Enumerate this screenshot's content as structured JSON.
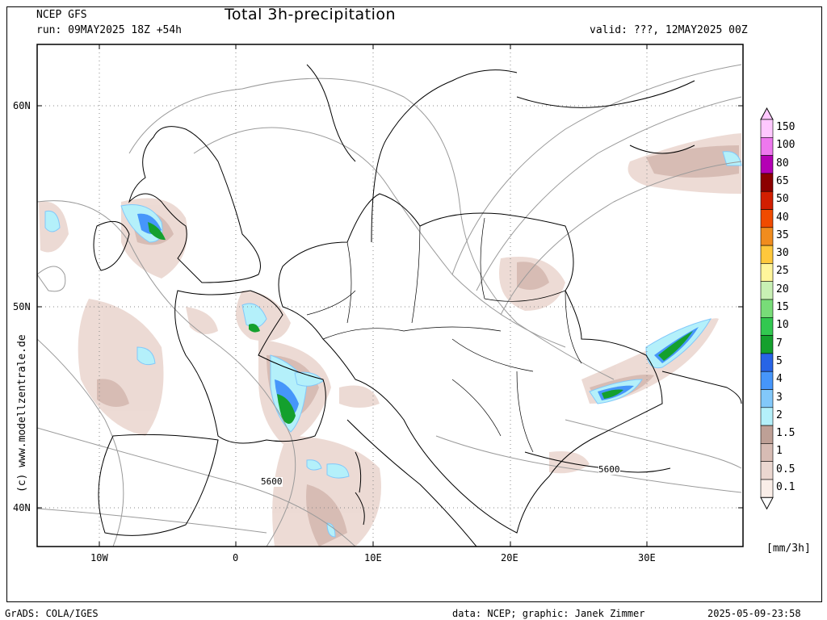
{
  "header": {
    "model": "NCEP GFS",
    "run": "run: 09MAY2025 18Z +54h",
    "title": "Total 3h-precipitation",
    "valid": "valid: ???, 12MAY2025 00Z"
  },
  "watermark": "(c) www.modellzentrale.de",
  "footer": {
    "left": "GrADS: COLA/IGES",
    "data": "data: NCEP; graphic: Janek Zimmer",
    "timestamp": "2025-05-09-23:58"
  },
  "axes": {
    "lat_labels": [
      "60N",
      "50N",
      "40N"
    ],
    "lon_labels": [
      "10W",
      "0",
      "10E",
      "20E",
      "30E"
    ]
  },
  "contour_labels": [
    "5600",
    "5600"
  ],
  "colorbar": {
    "unit": "[mm/3h]",
    "levels": [
      {
        "label": "150",
        "color": "#ffc8ff"
      },
      {
        "label": "100",
        "color": "#ee78ee"
      },
      {
        "label": "80",
        "color": "#b400b4"
      },
      {
        "label": "65",
        "color": "#8c0000"
      },
      {
        "label": "50",
        "color": "#d21e00"
      },
      {
        "label": "40",
        "color": "#f04b00"
      },
      {
        "label": "35",
        "color": "#f08c1e"
      },
      {
        "label": "30",
        "color": "#ffc83c"
      },
      {
        "label": "25",
        "color": "#fff59b"
      },
      {
        "label": "20",
        "color": "#c8f0b4"
      },
      {
        "label": "15",
        "color": "#78dc78"
      },
      {
        "label": "10",
        "color": "#32c850"
      },
      {
        "label": "7",
        "color": "#14a02d"
      },
      {
        "label": "5",
        "color": "#2864e6"
      },
      {
        "label": "4",
        "color": "#4696fa"
      },
      {
        "label": "3",
        "color": "#82c8fa"
      },
      {
        "label": "2",
        "color": "#b4f0fa"
      },
      {
        "label": "1.5",
        "color": "#bea096"
      },
      {
        "label": "1",
        "color": "#d7bcb4"
      },
      {
        "label": "0.5",
        "color": "#ebd7d0"
      },
      {
        "label": "0.1",
        "color": "#faeee8"
      }
    ]
  },
  "colors": {
    "land_border": "#000000",
    "contour": "#9a9a9a",
    "grid": "#888888"
  }
}
